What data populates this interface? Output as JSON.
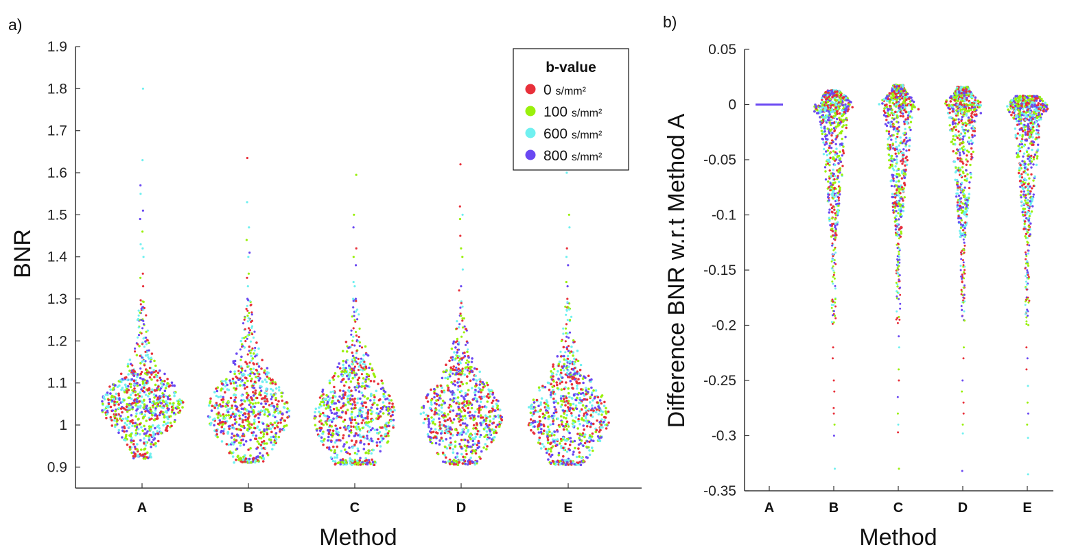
{
  "chart_data": [
    {
      "panel": "a)",
      "type": "scatter",
      "subtype": "beeswarm",
      "xlabel": "Method",
      "ylabel": "BNR",
      "categories": [
        "A",
        "B",
        "C",
        "D",
        "E"
      ],
      "ylim": [
        0.85,
        1.9
      ],
      "yticks": [
        "0.9",
        "1",
        "1.1",
        "1.2",
        "1.3",
        "1.4",
        "1.5",
        "1.6",
        "1.7",
        "1.8",
        "1.9"
      ],
      "legend": {
        "title": "b-value",
        "unit": "s/mm²",
        "position": "top-right",
        "entries": [
          {
            "value": "0",
            "color": "#e8303a"
          },
          {
            "value": "100",
            "color": "#9af00c"
          },
          {
            "value": "600",
            "color": "#70f0f0"
          },
          {
            "value": "800",
            "color": "#6a48f2"
          }
        ]
      },
      "distributions": [
        {
          "category": "A",
          "min": 0.92,
          "q1": 1.01,
          "median": 1.05,
          "q3": 1.08,
          "max": 1.8,
          "tail_points": [
            1.8,
            1.63,
            1.57,
            1.55,
            1.51,
            1.49,
            1.46,
            1.43,
            1.42,
            1.4,
            1.36,
            1.35,
            1.33,
            1.28,
            1.25,
            1.25,
            1.24,
            1.22
          ]
        },
        {
          "category": "B",
          "min": 0.91,
          "q1": 0.98,
          "median": 1.03,
          "q3": 1.07,
          "max": 1.635,
          "tail_points": [
            1.635,
            1.53,
            1.47,
            1.44,
            1.41,
            1.4,
            1.36,
            1.35,
            1.33,
            1.3,
            1.26,
            1.25,
            1.23,
            1.22
          ]
        },
        {
          "category": "C",
          "min": 0.905,
          "q1": 0.97,
          "median": 1.02,
          "q3": 1.07,
          "max": 1.595,
          "tail_points": [
            1.595,
            1.5,
            1.47,
            1.42,
            1.4,
            1.38,
            1.34,
            1.33,
            1.3,
            1.28,
            1.27,
            1.25,
            1.23,
            1.21
          ]
        },
        {
          "category": "D",
          "min": 0.905,
          "q1": 0.97,
          "median": 1.02,
          "q3": 1.06,
          "max": 1.62,
          "tail_points": [
            1.62,
            1.52,
            1.5,
            1.49,
            1.45,
            1.42,
            1.4,
            1.37,
            1.33,
            1.32,
            1.29,
            1.26,
            1.24,
            1.21
          ]
        },
        {
          "category": "E",
          "min": 0.905,
          "q1": 0.97,
          "median": 1.02,
          "q3": 1.06,
          "max": 1.6,
          "tail_points": [
            1.6,
            1.5,
            1.47,
            1.42,
            1.4,
            1.38,
            1.34,
            1.33,
            1.3,
            1.25,
            1.25,
            1.22,
            1.21
          ]
        }
      ]
    },
    {
      "panel": "b)",
      "type": "scatter",
      "subtype": "beeswarm",
      "xlabel": "Method",
      "ylabel": "Difference BNR w.r.t Method A",
      "categories": [
        "A",
        "B",
        "C",
        "D",
        "E"
      ],
      "ylim": [
        -0.35,
        0.05
      ],
      "yticks": [
        "0.05",
        "0",
        "-0.05",
        "-0.1",
        "-0.15",
        "-0.2",
        "-0.25",
        "-0.3",
        "-0.35"
      ],
      "distributions": [
        {
          "category": "A",
          "min": 0.0,
          "max": 0.0,
          "constant": true
        },
        {
          "category": "B",
          "min": -0.33,
          "q1": -0.045,
          "median": -0.015,
          "q3": 0.0,
          "max": 0.013,
          "tail_points": [
            -0.22,
            -0.23,
            -0.25,
            -0.26,
            -0.275,
            -0.28,
            -0.29,
            -0.3,
            -0.33
          ]
        },
        {
          "category": "C",
          "min": -0.33,
          "q1": -0.05,
          "median": -0.02,
          "q3": 0.0,
          "max": 0.018,
          "tail_points": [
            -0.21,
            -0.22,
            -0.24,
            -0.25,
            -0.265,
            -0.28,
            -0.29,
            -0.297,
            -0.33
          ]
        },
        {
          "category": "D",
          "min": -0.332,
          "q1": -0.045,
          "median": -0.01,
          "q3": 0.0,
          "max": 0.016,
          "tail_points": [
            -0.22,
            -0.23,
            -0.25,
            -0.26,
            -0.27,
            -0.28,
            -0.29,
            -0.298,
            -0.332
          ]
        },
        {
          "category": "E",
          "min": -0.335,
          "q1": -0.05,
          "median": -0.015,
          "q3": 0.0,
          "max": 0.008,
          "tail_points": [
            -0.22,
            -0.23,
            -0.24,
            -0.255,
            -0.27,
            -0.28,
            -0.29,
            -0.302,
            -0.335
          ]
        }
      ]
    }
  ]
}
